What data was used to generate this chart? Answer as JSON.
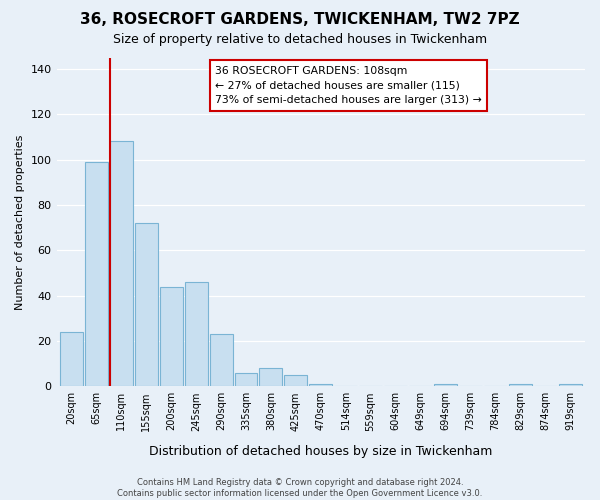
{
  "title": "36, ROSECROFT GARDENS, TWICKENHAM, TW2 7PZ",
  "subtitle": "Size of property relative to detached houses in Twickenham",
  "xlabel": "Distribution of detached houses by size in Twickenham",
  "ylabel": "Number of detached properties",
  "bin_labels": [
    "20sqm",
    "65sqm",
    "110sqm",
    "155sqm",
    "200sqm",
    "245sqm",
    "290sqm",
    "335sqm",
    "380sqm",
    "425sqm",
    "470sqm",
    "514sqm",
    "559sqm",
    "604sqm",
    "649sqm",
    "694sqm",
    "739sqm",
    "784sqm",
    "829sqm",
    "874sqm",
    "919sqm"
  ],
  "bar_values": [
    24,
    99,
    108,
    72,
    44,
    46,
    23,
    6,
    8,
    5,
    1,
    0,
    0,
    0,
    0,
    1,
    0,
    0,
    1,
    0,
    1
  ],
  "bar_color": "#c8dff0",
  "bar_edge_color": "#7ab4d4",
  "ylim": [
    0,
    145
  ],
  "yticks": [
    0,
    20,
    40,
    60,
    80,
    100,
    120,
    140
  ],
  "property_line_index": 2,
  "property_line_color": "#cc0000",
  "annotation_line1": "36 ROSECROFT GARDENS: 108sqm",
  "annotation_line2": "← 27% of detached houses are smaller (115)",
  "annotation_line3": "73% of semi-detached houses are larger (313) →",
  "background_color": "#e8f0f8",
  "grid_color": "#ffffff",
  "footer_text": "Contains HM Land Registry data © Crown copyright and database right 2024.\nContains public sector information licensed under the Open Government Licence v3.0."
}
